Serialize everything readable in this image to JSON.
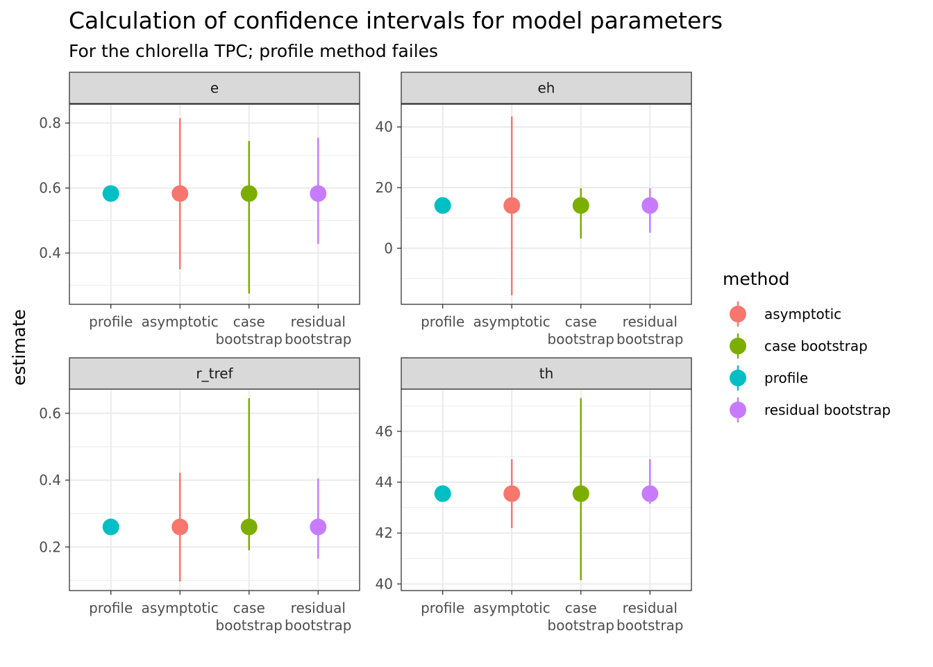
{
  "chart_data": {
    "type": "scatter",
    "geom": "pointrange",
    "title": "Calculation of confidence intervals for model parameters",
    "subtitle": "For the chlorella TPC; profile method failes",
    "ylabel": "estimate",
    "xlabel": "",
    "categories": [
      "profile",
      "asymptotic",
      "case bootstrap",
      "residual bootstrap"
    ],
    "category_tick_labels": [
      [
        "profile"
      ],
      [
        "asymptotic"
      ],
      [
        "case",
        "bootstrap"
      ],
      [
        "residual",
        "bootstrap"
      ]
    ],
    "legend": {
      "title": "method",
      "position": "right",
      "items": [
        {
          "label": "asymptotic",
          "color": "#F8766D"
        },
        {
          "label": "case bootstrap",
          "color": "#7CAE00"
        },
        {
          "label": "profile",
          "color": "#00BFC4"
        },
        {
          "label": "residual bootstrap",
          "color": "#C77CFF"
        }
      ]
    },
    "grid": true,
    "theme": "bw",
    "panels": [
      {
        "name": "e",
        "ylim": [
          0.27,
          0.83
        ],
        "yticks": [
          0.4,
          0.6,
          0.8
        ],
        "tick_labels": [
          "0.4",
          "0.6",
          "0.8"
        ],
        "series": [
          {
            "name": "profile",
            "estimate": 0.583,
            "conf_lower": null,
            "conf_upper": null
          },
          {
            "name": "asymptotic",
            "estimate": 0.583,
            "conf_lower": 0.35,
            "conf_upper": 0.815
          },
          {
            "name": "case bootstrap",
            "estimate": 0.583,
            "conf_lower": 0.275,
            "conf_upper": 0.745
          },
          {
            "name": "residual bootstrap",
            "estimate": 0.583,
            "conf_lower": 0.428,
            "conf_upper": 0.755
          }
        ]
      },
      {
        "name": "eh",
        "ylim": [
          -15.5,
          44.5
        ],
        "yticks": [
          0,
          20,
          40
        ],
        "tick_labels": [
          "0",
          "20",
          "40"
        ],
        "series": [
          {
            "name": "profile",
            "estimate": 14.1,
            "conf_lower": null,
            "conf_upper": null
          },
          {
            "name": "asymptotic",
            "estimate": 14.1,
            "conf_lower": -15.5,
            "conf_upper": 43.5
          },
          {
            "name": "case bootstrap",
            "estimate": 14.1,
            "conf_lower": 3.2,
            "conf_upper": 19.8
          },
          {
            "name": "residual bootstrap",
            "estimate": 14.1,
            "conf_lower": 5.1,
            "conf_upper": 19.8
          }
        ]
      },
      {
        "name": "r_tref",
        "ylim": [
          0.097,
          0.645
        ],
        "yticks": [
          0.2,
          0.4,
          0.6
        ],
        "tick_labels": [
          "0.2",
          "0.4",
          "0.6"
        ],
        "series": [
          {
            "name": "profile",
            "estimate": 0.26,
            "conf_lower": null,
            "conf_upper": null
          },
          {
            "name": "asymptotic",
            "estimate": 0.26,
            "conf_lower": 0.097,
            "conf_upper": 0.422
          },
          {
            "name": "case bootstrap",
            "estimate": 0.26,
            "conf_lower": 0.19,
            "conf_upper": 0.645
          },
          {
            "name": "residual bootstrap",
            "estimate": 0.26,
            "conf_lower": 0.165,
            "conf_upper": 0.405
          }
        ]
      },
      {
        "name": "th",
        "ylim": [
          40.1,
          47.3
        ],
        "yticks": [
          40,
          42,
          44,
          46
        ],
        "tick_labels": [
          "40",
          "42",
          "44",
          "46"
        ],
        "series": [
          {
            "name": "profile",
            "estimate": 43.55,
            "conf_lower": null,
            "conf_upper": null
          },
          {
            "name": "asymptotic",
            "estimate": 43.55,
            "conf_lower": 42.2,
            "conf_upper": 44.9
          },
          {
            "name": "case bootstrap",
            "estimate": 43.55,
            "conf_lower": 40.15,
            "conf_upper": 47.3
          },
          {
            "name": "residual bootstrap",
            "estimate": 43.55,
            "conf_lower": 43.15,
            "conf_upper": 44.9
          }
        ]
      }
    ]
  }
}
